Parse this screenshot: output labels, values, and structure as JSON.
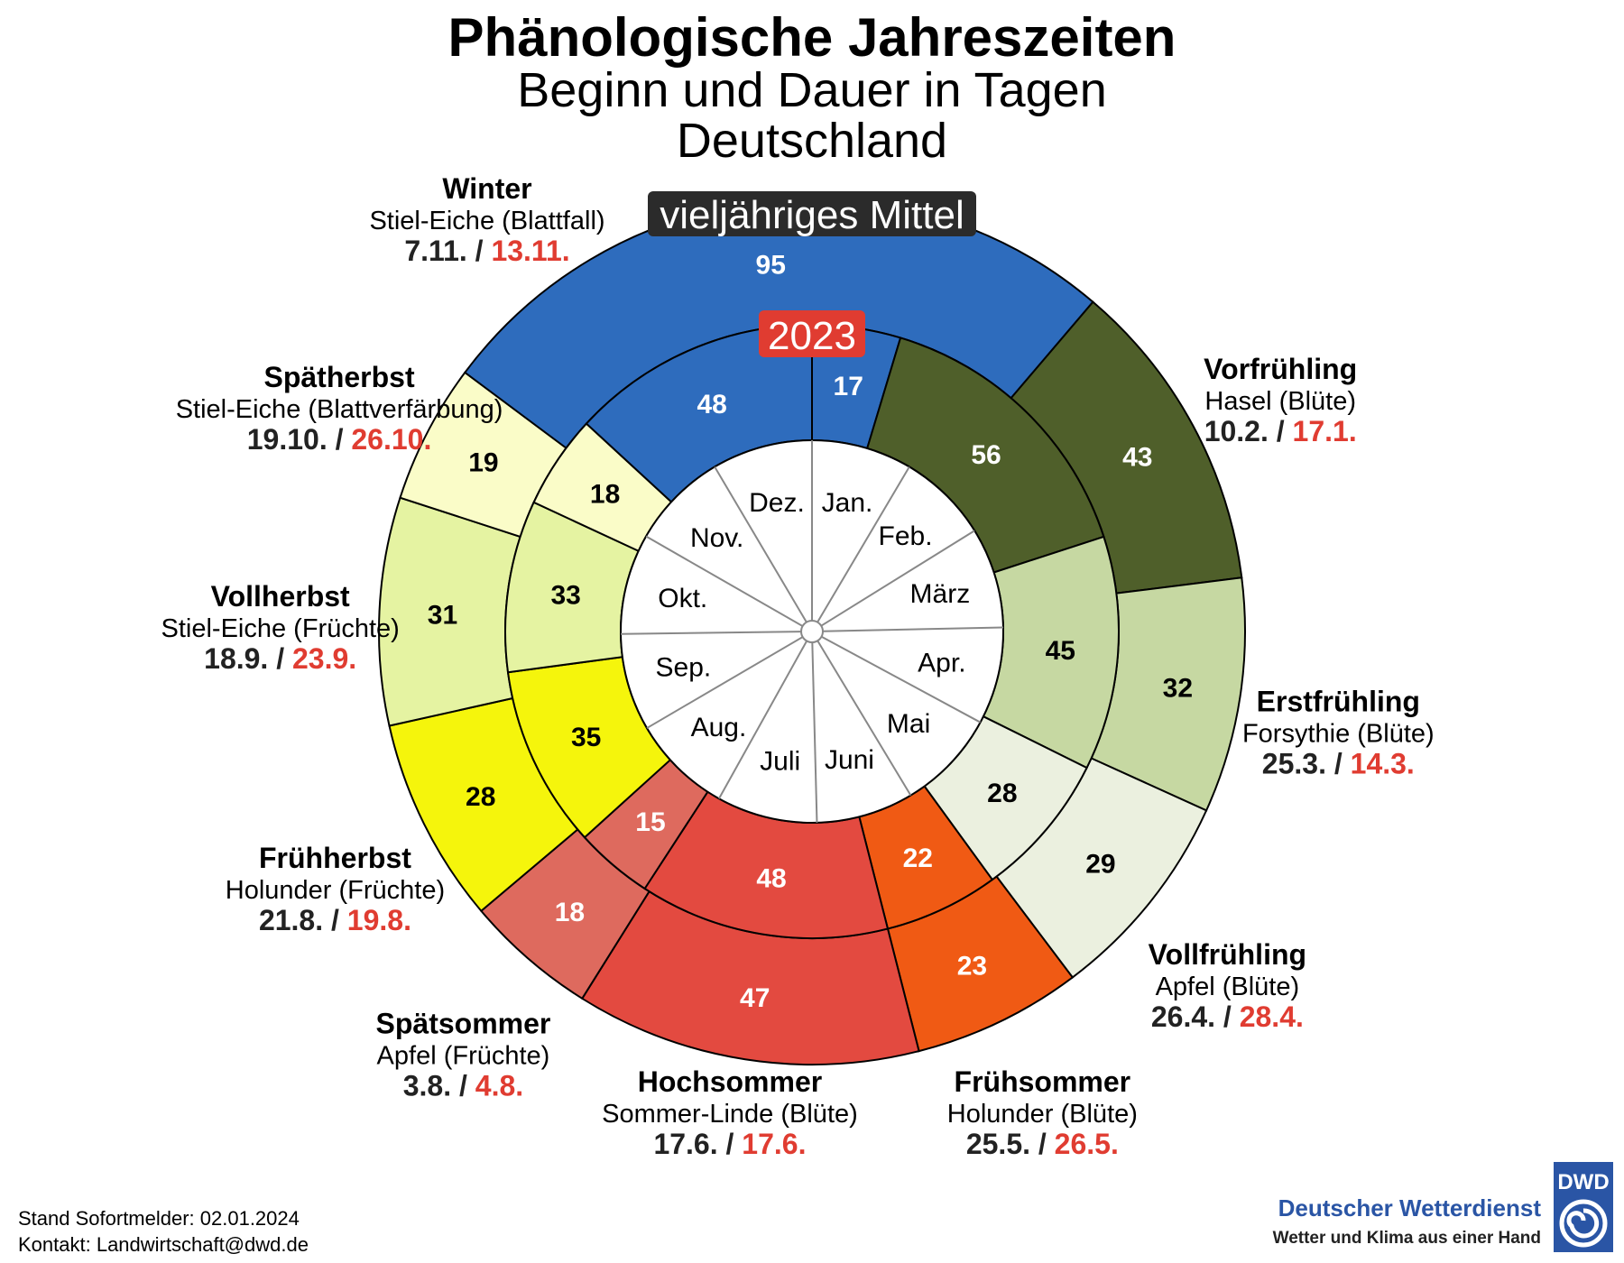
{
  "chart_data": {
    "type": "pie",
    "title": "Phänologische Jahreszeiten",
    "subtitle": "Beginn und Dauer in Tagen",
    "region": "Deutschland",
    "outer_ring_label": "vieljähriges Mittel",
    "inner_ring_label": "2023",
    "months": [
      "Jan.",
      "Feb.",
      "März",
      "Apr.",
      "Mai",
      "Juni",
      "Juli",
      "Aug.",
      "Sep.",
      "Okt.",
      "Nov.",
      "Dez."
    ],
    "seasons": [
      {
        "name": "Vorfrühling",
        "indicator": "Hasel (Blüte)",
        "date_mean": "10.2.",
        "date_2023": "17.1.",
        "mean_days": 43,
        "days_2023": 56,
        "color": "#4f5f2a",
        "text_color": "#ffffff"
      },
      {
        "name": "Erstfrühling",
        "indicator": "Forsythie (Blüte)",
        "date_mean": "25.3.",
        "date_2023": "14.3.",
        "mean_days": 32,
        "days_2023": 45,
        "color": "#c6d8a2",
        "text_color": "#000000"
      },
      {
        "name": "Vollfrühling",
        "indicator": "Apfel (Blüte)",
        "date_mean": "26.4.",
        "date_2023": "28.4.",
        "mean_days": 29,
        "days_2023": 28,
        "color": "#ebf0df",
        "text_color": "#000000"
      },
      {
        "name": "Frühsommer",
        "indicator": "Holunder (Blüte)",
        "date_mean": "25.5.",
        "date_2023": "26.5.",
        "mean_days": 23,
        "days_2023": 22,
        "color": "#f05a14",
        "text_color": "#ffffff"
      },
      {
        "name": "Hochsommer",
        "indicator": "Sommer-Linde (Blüte)",
        "date_mean": "17.6.",
        "date_2023": "17.6.",
        "mean_days": 47,
        "days_2023": 48,
        "color": "#e34a40",
        "text_color": "#ffffff"
      },
      {
        "name": "Spätsommer",
        "indicator": "Apfel (Früchte)",
        "date_mean": "3.8.",
        "date_2023": "4.8.",
        "mean_days": 18,
        "days_2023": 15,
        "color": "#de6a5e",
        "text_color": "#ffffff"
      },
      {
        "name": "Frühherbst",
        "indicator": "Holunder (Früchte)",
        "date_mean": "21.8.",
        "date_2023": "19.8.",
        "mean_days": 28,
        "days_2023": 35,
        "color": "#f5f50c",
        "text_color": "#000000"
      },
      {
        "name": "Vollherbst",
        "indicator": "Stiel-Eiche (Früchte)",
        "date_mean": "18.9.",
        "date_2023": "23.9.",
        "mean_days": 31,
        "days_2023": 33,
        "color": "#e5f3a2",
        "text_color": "#000000"
      },
      {
        "name": "Spätherbst",
        "indicator": "Stiel-Eiche (Blattverfärbung)",
        "date_mean": "19.10.",
        "date_2023": "26.10.",
        "mean_days": 19,
        "days_2023": 18,
        "color": "#fafcc8",
        "text_color": "#000000"
      },
      {
        "name": "Winter",
        "indicator": "Stiel-Eiche (Blattfall)",
        "date_mean": "7.11.",
        "date_2023": "13.11.",
        "mean_days": 95,
        "days_2023": 65,
        "days_2023_parts": [
          48,
          17
        ],
        "color": "#2e6cbd",
        "text_color": "#ffffff"
      }
    ]
  },
  "footer": {
    "line1": "Stand Sofortmelder: 02.01.2024",
    "line2": "Kontakt: Landwirtschaft@dwd.de"
  },
  "brand": {
    "logo_text": "DWD",
    "name": "Deutscher Wetterdienst",
    "slogan": "Wetter und Klima aus einer Hand",
    "color": "#2a55a5"
  },
  "colors": {
    "date_2023": "#e03c31",
    "date_mean": "#222222",
    "badge_mean": "#2b2b2b",
    "badge_2023": "#e03c31"
  }
}
